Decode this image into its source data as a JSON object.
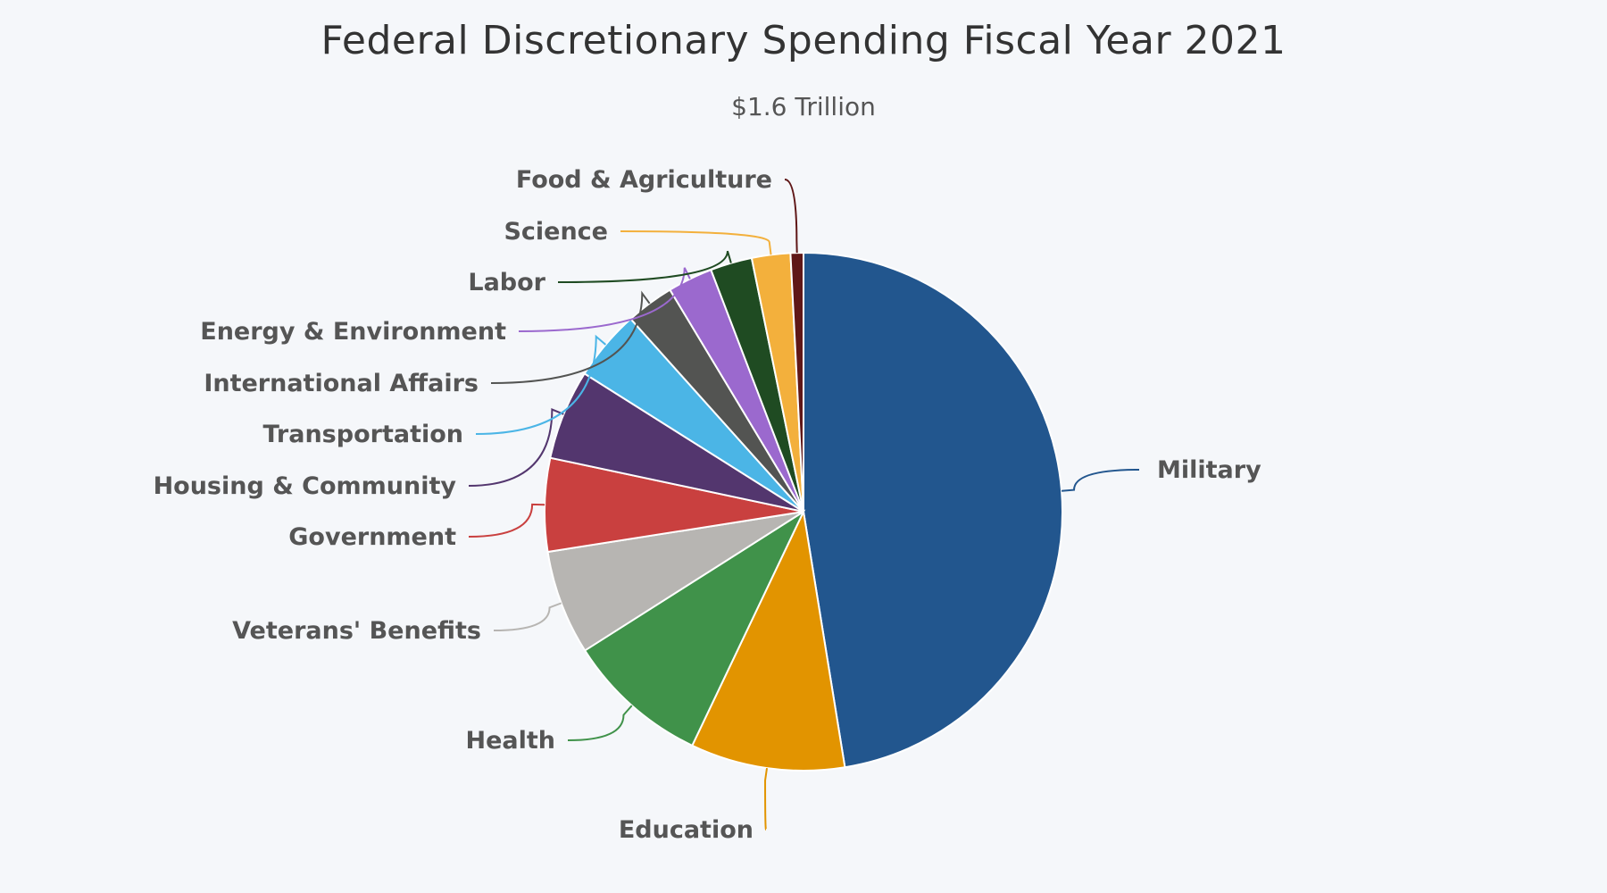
{
  "chart_data": {
    "type": "pie",
    "title": "Federal Discretionary Spending Fiscal Year 2021",
    "subtitle": "$1.6 Trillion",
    "slices": [
      {
        "label": "Military",
        "value": 47.3,
        "color": "#22568e"
      },
      {
        "label": "Education",
        "value": 9.6,
        "color": "#e29400"
      },
      {
        "label": "Health",
        "value": 8.9,
        "color": "#40924a"
      },
      {
        "label": "Veterans' Benefits",
        "value": 6.5,
        "color": "#b7b5b2"
      },
      {
        "label": "Government",
        "value": 5.8,
        "color": "#c9403f"
      },
      {
        "label": "Housing & Community",
        "value": 5.6,
        "color": "#53366e"
      },
      {
        "label": "Transportation",
        "value": 4.4,
        "color": "#4bb5e6"
      },
      {
        "label": "International Affairs",
        "value": 3.0,
        "color": "#535452"
      },
      {
        "label": "Energy & Environment",
        "value": 2.8,
        "color": "#9b69ce"
      },
      {
        "label": "Labor",
        "value": 2.6,
        "color": "#1f4b22"
      },
      {
        "label": "Science",
        "value": 2.4,
        "color": "#f3b03c"
      },
      {
        "label": "Food & Agriculture",
        "value": 0.8,
        "color": "#5f1717"
      }
    ]
  }
}
